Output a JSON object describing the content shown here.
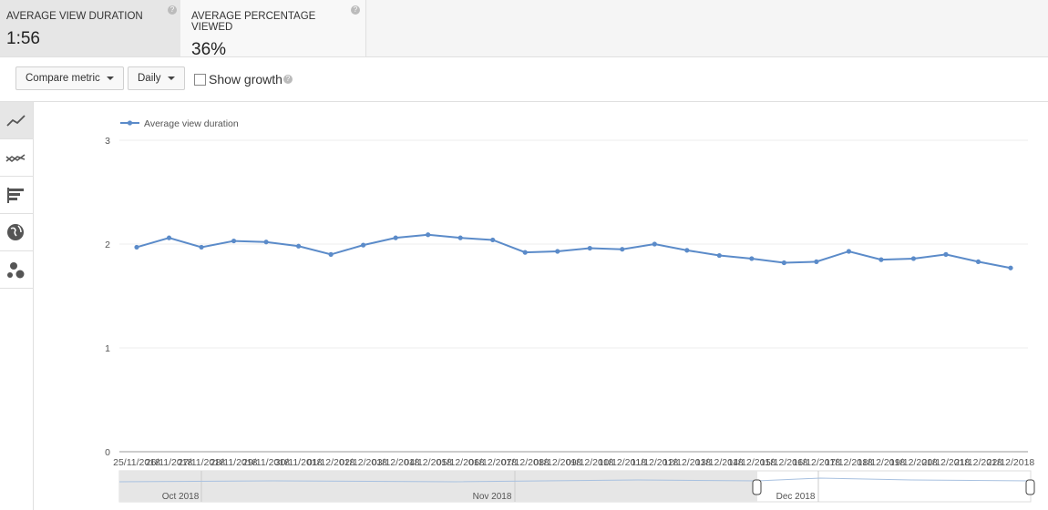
{
  "metrics": [
    {
      "label": "AVERAGE VIEW DURATION",
      "value": "1:56"
    },
    {
      "label": "AVERAGE PERCENTAGE VIEWED",
      "value": "36%"
    }
  ],
  "toolbar": {
    "compare": "Compare metric",
    "period": "Daily",
    "growth": "Show growth"
  },
  "navigator": {
    "labels": [
      "Oct 2018",
      "Nov 2018",
      "Dec 2018"
    ]
  },
  "chart_data": {
    "type": "line",
    "categories": [
      "25/11/2018",
      "26/11/2018",
      "27/11/2018",
      "28/11/2018",
      "29/11/2018",
      "30/11/2018",
      "01/12/2018",
      "02/12/2018",
      "03/12/2018",
      "04/12/2018",
      "05/12/2018",
      "06/12/2018",
      "07/12/2018",
      "08/12/2018",
      "09/12/2018",
      "10/12/2018",
      "11/12/2018",
      "12/12/2018",
      "13/12/2018",
      "14/12/2018",
      "15/12/2018",
      "16/12/2018",
      "17/12/2018",
      "18/12/2018",
      "19/12/2018",
      "20/12/2018",
      "21/12/2018",
      "22/12/2018"
    ],
    "series": [
      {
        "name": "Average view duration",
        "color": "#5b8bc9",
        "values": [
          1.97,
          2.06,
          1.97,
          2.03,
          2.02,
          1.98,
          1.9,
          1.99,
          2.06,
          2.09,
          2.06,
          2.04,
          1.92,
          1.93,
          1.96,
          1.95,
          2.0,
          1.94,
          1.89,
          1.86,
          1.82,
          1.83,
          1.93,
          1.85,
          1.86,
          1.9,
          1.83,
          1.77
        ]
      }
    ],
    "ylim": [
      0,
      3
    ],
    "yticks": [
      0,
      1,
      2,
      3
    ],
    "grid": true,
    "legend": "top-left"
  }
}
